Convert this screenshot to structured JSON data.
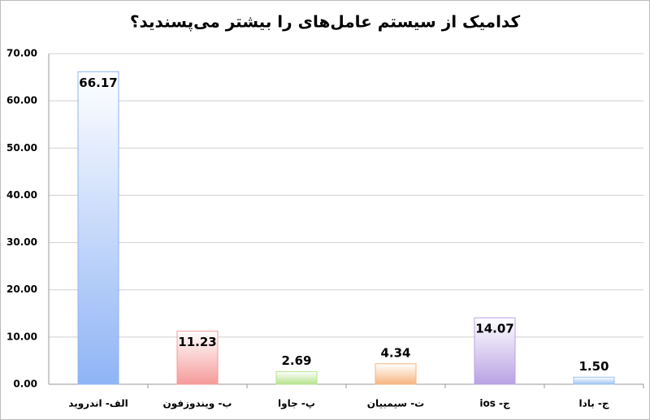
{
  "chart_data": {
    "type": "bar",
    "title": "کدامیک از سیستم عامل‌های را بیشتر می‌پسندید؟",
    "categories": [
      "الف- اندروید",
      "ب- ویندوزفون",
      "پ- جاوا",
      "ت- سیمبیان",
      "ج- ios",
      "ج- بادا"
    ],
    "values": [
      66.17,
      11.23,
      2.69,
      4.34,
      14.07,
      1.5
    ],
    "value_labels": [
      "66.17",
      "11.23",
      "2.69",
      "4.34",
      "14.07",
      "1.50"
    ],
    "colors": [
      "#8fb4f5",
      "#f59a9a",
      "#b6e38c",
      "#f7b581",
      "#b9a2e3",
      "#9ec2f2"
    ],
    "ylim": [
      0,
      70
    ],
    "yticks": [
      {
        "value": 0,
        "label": "0.00"
      },
      {
        "value": 10,
        "label": "10.00"
      },
      {
        "value": 20,
        "label": "20.00"
      },
      {
        "value": 30,
        "label": "30.00"
      },
      {
        "value": 40,
        "label": "40.00"
      },
      {
        "value": 50,
        "label": "50.00"
      },
      {
        "value": 60,
        "label": "60.00"
      },
      {
        "value": 70,
        "label": "70.00"
      }
    ],
    "grid": true
  }
}
